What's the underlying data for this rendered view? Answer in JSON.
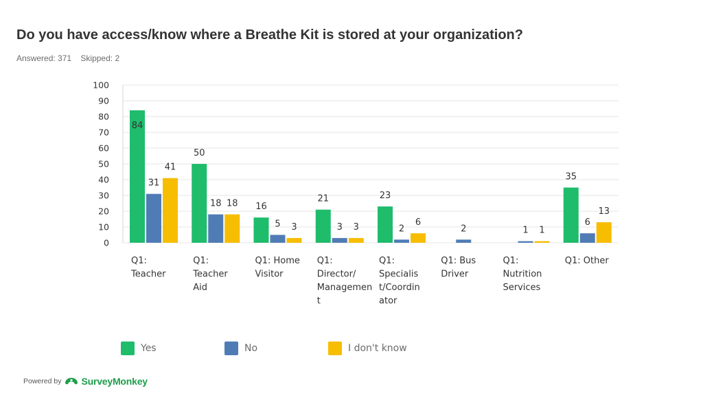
{
  "header": {
    "title": "Do you have access/know where a Breathe Kit is stored at your organization?",
    "answered": "Answered: 371",
    "skipped": "Skipped: 2"
  },
  "footer": {
    "powered_by": "Powered by",
    "brand": "SurveyMonkey"
  },
  "chart_data": {
    "type": "bar",
    "title": "",
    "xlabel": "",
    "ylabel": "",
    "ylim": [
      0,
      100
    ],
    "yticks": [
      0,
      10,
      20,
      30,
      40,
      50,
      60,
      70,
      80,
      90,
      100
    ],
    "grid": true,
    "legend_position": "bottom",
    "categories": [
      "Q1: Teacher",
      "Q1: Teacher Aid",
      "Q1: Home Visitor",
      "Q1: Director/Management",
      "Q1: Specialist/Coordinator",
      "Q1: Bus Driver",
      "Q1: Nutrition Services",
      "Q1: Other"
    ],
    "category_label_lines": [
      [
        "Q1:",
        "Teacher"
      ],
      [
        "Q1:",
        "Teacher",
        "Aid"
      ],
      [
        "Q1: Home",
        "Visitor"
      ],
      [
        "Q1:",
        "Director/",
        "Managemen",
        "t"
      ],
      [
        "Q1:",
        "Specialis",
        "t/Coordin",
        "ator"
      ],
      [
        "Q1: Bus",
        "Driver"
      ],
      [
        "Q1:",
        "Nutrition",
        "Services"
      ],
      [
        "Q1: Other"
      ]
    ],
    "series": [
      {
        "name": "Yes",
        "color": "#1fbc6c",
        "values": [
          84,
          50,
          16,
          21,
          23,
          0,
          0,
          35
        ],
        "labels": [
          "84",
          "50",
          "16",
          "21",
          "23",
          "",
          "",
          "35"
        ]
      },
      {
        "name": "No",
        "color": "#507cb6",
        "values": [
          31,
          18,
          5,
          3,
          2,
          2,
          1,
          6
        ],
        "labels": [
          "31",
          "18",
          "5",
          "3",
          "2",
          "2",
          "1",
          "6"
        ]
      },
      {
        "name": "I don't know",
        "color": "#f7bd00",
        "values": [
          41,
          18,
          3,
          3,
          6,
          0,
          1,
          13
        ],
        "labels": [
          "41",
          "18",
          "3",
          "3",
          "6",
          "",
          "1",
          "13"
        ]
      }
    ]
  }
}
